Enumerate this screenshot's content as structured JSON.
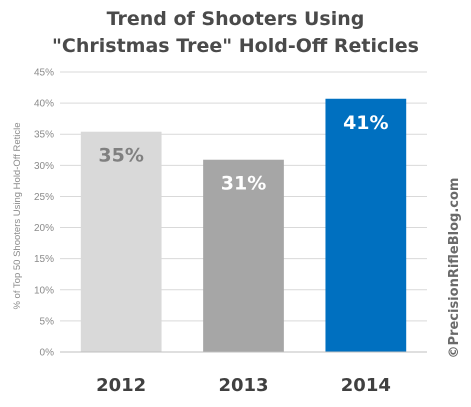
{
  "chart_data": {
    "type": "bar",
    "title_lines": [
      "Trend of Shooters Using",
      "\"Christmas Tree\" Hold-Off Reticles"
    ],
    "ylabel": "% of Top 50 Shooters Using Hold-Off Reticle",
    "xlabel": "",
    "categories": [
      "2012",
      "2013",
      "2014"
    ],
    "values": [
      35.4,
      30.9,
      40.7
    ],
    "data_labels": [
      "35%",
      "31%",
      "41%"
    ],
    "bar_colors": [
      "#d9d9d9",
      "#a6a6a6",
      "#0070c0"
    ],
    "data_label_colors": [
      "#808080",
      "#ffffff",
      "#ffffff"
    ],
    "ylim": [
      0,
      45
    ],
    "yticks": [
      0,
      5,
      10,
      15,
      20,
      25,
      30,
      35,
      40,
      45
    ],
    "ytick_labels": [
      "0%",
      "5%",
      "10%",
      "15%",
      "20%",
      "25%",
      "30%",
      "35%",
      "40%",
      "45%"
    ],
    "grid": true,
    "legend": "none"
  },
  "watermark": "©PrecisionRifleBlog.com"
}
